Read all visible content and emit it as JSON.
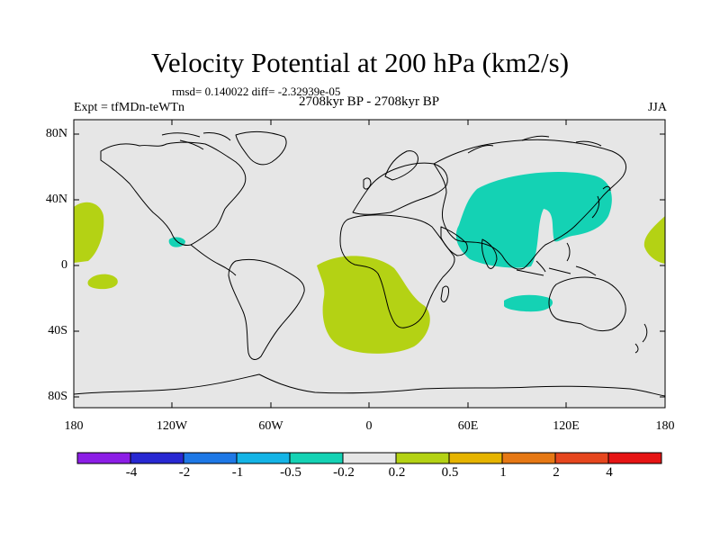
{
  "title": "Velocity Potential at 200 hPa (km2/s)",
  "stats": "rmsd= 0.140022 diff= -2.32939e-05",
  "experiment": "Expt = tfMDn-teWTn",
  "period": "2708kyr BP - 2708kyr BP",
  "season": "JJA",
  "lat_labels": [
    "80N",
    "40N",
    "0",
    "40S",
    "80S"
  ],
  "lon_labels": [
    "180",
    "120W",
    "60W",
    "0",
    "60E",
    "120E",
    "180"
  ],
  "colorbar": {
    "colors": [
      "#8c1ee6",
      "#2828d2",
      "#1e78e6",
      "#14b4e6",
      "#14d2b4",
      "#e6e6e6",
      "#b4d214",
      "#e6b400",
      "#e67814",
      "#e6461e",
      "#e61414"
    ],
    "labels": [
      "-4",
      "-2",
      "-1",
      "-0.5",
      "-0.2",
      "0.2",
      "0.5",
      "1",
      "2",
      "4"
    ]
  },
  "colors": {
    "ocean_background": "#e6e6e6",
    "positive_anomaly": "#b4d214",
    "negative_anomaly": "#14d2b4"
  }
}
